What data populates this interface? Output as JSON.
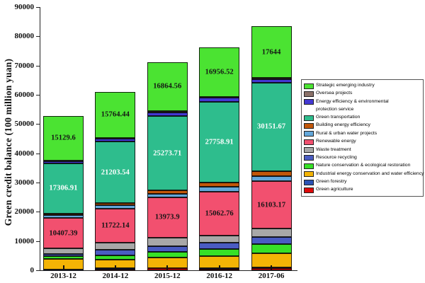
{
  "chart_data": {
    "type": "bar",
    "stacked": true,
    "title": "",
    "ylabel": "Green credit balance (100 million yuan)",
    "xlabel": "",
    "ylim": [
      0,
      90000
    ],
    "ytick_step": 10000,
    "yticks": [
      "0",
      "10000",
      "20000",
      "30000",
      "40000",
      "50000",
      "60000",
      "70000",
      "80000",
      "90000"
    ],
    "categories": [
      "2013-12",
      "2014-12",
      "2015-12",
      "2016-12",
      "2017-06"
    ],
    "series_bottom_to_top": [
      {
        "name": "Green agriculture",
        "color": "#de0909",
        "values": [
          100,
          150,
          650,
          500,
          800
        ]
      },
      {
        "name": "Green forestry",
        "color": "#2b53b5",
        "values": [
          150,
          500,
          200,
          200,
          250
        ]
      },
      {
        "name": "Industrial energy conservation and water efficiency",
        "color": "#f4b405",
        "values": [
          3600,
          3100,
          3400,
          4200,
          4800
        ]
      },
      {
        "name": "Nature conservation & ecological restoration",
        "color": "#37e027",
        "values": [
          900,
          1450,
          2000,
          2430,
          3000
        ]
      },
      {
        "name": "Resource recycling",
        "color": "#4a5cc2",
        "values": [
          700,
          1800,
          2020,
          2020,
          2430
        ]
      },
      {
        "name": "Waste treatment",
        "color": "#a8a8a8",
        "values": [
          2000,
          2450,
          2800,
          2430,
          3000
        ]
      },
      {
        "name": "Renewable energy",
        "color": "#f2506f",
        "values": [
          10407.39,
          11722.14,
          13973.9,
          15062.76,
          16103.17
        ],
        "labels": [
          "10407.39",
          "11722.14",
          "13973.9",
          "15062.76",
          "16103.17"
        ],
        "label_color": "#141414"
      },
      {
        "name": "Rural & urban water projects",
        "color": "#63a7da",
        "values": [
          950,
          1000,
          1200,
          1600,
          1800
        ]
      },
      {
        "name": "Building energy efficiency",
        "color": "#c2570a",
        "values": [
          500,
          700,
          1140,
          1460,
          1800
        ]
      },
      {
        "name": "Green transportation",
        "color": "#2ebd8d",
        "values": [
          17306.91,
          21203.54,
          25273.71,
          27758.91,
          30151.67
        ],
        "labels": [
          "17306.91",
          "21203.54",
          "25273.71",
          "27758.91",
          "30151.67"
        ],
        "label_color": "#ffffff"
      },
      {
        "name": "Energy efficiency & environmental protection service",
        "color": "#4338d2",
        "values": [
          700,
          900,
          1200,
          1300,
          1300
        ]
      },
      {
        "name": "Oversea projects",
        "color": "#8b7168",
        "values": [
          250,
          300,
          500,
          400,
          320
        ]
      },
      {
        "name": "Strategic emerging industry",
        "color": "#4be332",
        "values": [
          15129.6,
          15764.44,
          16864.56,
          16956.52,
          17644
        ],
        "labels": [
          "15129.6",
          "15764.44",
          "16864.56",
          "16956.52",
          "17644"
        ],
        "label_color": "#141414"
      }
    ],
    "legend_position": "right",
    "legend_items_top_to_bottom": [
      {
        "lines": [
          "Strategic emerging industry"
        ]
      },
      {
        "lines": [
          "Oversea projects"
        ]
      },
      {
        "lines": [
          "Energy efficiency & environmental",
          "protection service"
        ]
      },
      {
        "lines": [
          "Green transportation"
        ]
      },
      {
        "lines": [
          "Building energy efficiency"
        ]
      },
      {
        "lines": [
          "Rural & urban water projects"
        ]
      },
      {
        "lines": [
          "Renewable energy"
        ]
      },
      {
        "lines": [
          "Waste treatment"
        ]
      },
      {
        "lines": [
          "Resource recycling"
        ]
      },
      {
        "lines": [
          "Nature conservation & ecological restoration"
        ]
      },
      {
        "lines": [
          "Industrial energy conservation and water efficiency"
        ]
      },
      {
        "lines": [
          "Green forestry"
        ]
      },
      {
        "lines": [
          "Green agriculture"
        ]
      }
    ]
  }
}
